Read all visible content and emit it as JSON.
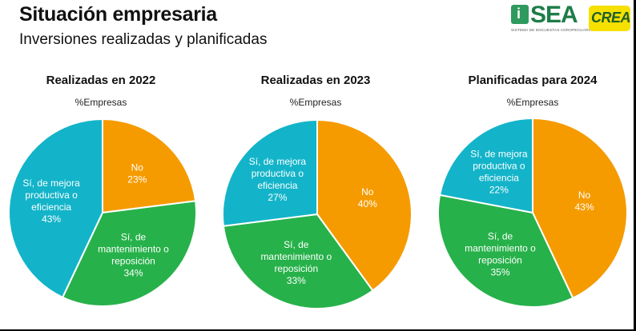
{
  "header": {
    "title": "Situación empresaria",
    "subtitle": "Inversiones realizadas y planificadas"
  },
  "logos": {
    "sea": {
      "name": "SEA",
      "tagline": "SISTEMA DE ENCUESTAS AGROPECUARIAS"
    },
    "crea": {
      "name": "CREA"
    }
  },
  "chart_data": [
    {
      "type": "pie",
      "title": "Realizadas en 2022",
      "subtitle": "%Empresas",
      "slices": [
        {
          "label": [
            "No"
          ],
          "value": 23,
          "display": "23%",
          "color": "#f59b00"
        },
        {
          "label": [
            "Sí, de",
            "mantenimiento o",
            "reposición"
          ],
          "value": 34,
          "display": "34%",
          "color": "#27b14a"
        },
        {
          "label": [
            "Sí, de mejora",
            "productiva o",
            "eficiencia"
          ],
          "value": 43,
          "display": "43%",
          "color": "#13b4c9"
        }
      ]
    },
    {
      "type": "pie",
      "title": "Realizadas en 2023",
      "subtitle": "%Empresas",
      "slices": [
        {
          "label": [
            "No"
          ],
          "value": 40,
          "display": "40%",
          "color": "#f59b00"
        },
        {
          "label": [
            "Sí, de",
            "mantenimiento o",
            "reposición"
          ],
          "value": 33,
          "display": "33%",
          "color": "#27b14a"
        },
        {
          "label": [
            "Sí, de mejora",
            "productiva o",
            "eficiencia"
          ],
          "value": 27,
          "display": "27%",
          "color": "#13b4c9"
        }
      ]
    },
    {
      "type": "pie",
      "title": "Planificadas para 2024",
      "subtitle": "%Empresas",
      "slices": [
        {
          "label": [
            "No"
          ],
          "value": 43,
          "display": "43%",
          "color": "#f59b00"
        },
        {
          "label": [
            "Sí, de",
            "mantenimiento o",
            "reposición"
          ],
          "value": 35,
          "display": "35%",
          "color": "#27b14a"
        },
        {
          "label": [
            "Sí, de mejora",
            "productiva o",
            "eficiencia"
          ],
          "value": 22,
          "display": "22%",
          "color": "#13b4c9"
        }
      ]
    }
  ]
}
